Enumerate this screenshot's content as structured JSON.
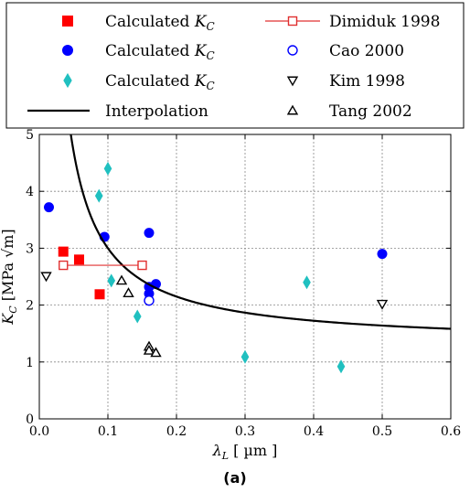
{
  "chart_data": {
    "type": "scatter",
    "caption": "(a)",
    "xlabel": "λL [ µm ]",
    "ylabel": "KC [MPa √m]",
    "xlim": [
      0,
      0.6
    ],
    "ylim": [
      0,
      5
    ],
    "xticks": [
      "0.0",
      "0.1",
      "0.2",
      "0.3",
      "0.4",
      "0.5",
      "0.6"
    ],
    "yticks": [
      "0",
      "1",
      "2",
      "3",
      "4",
      "5"
    ],
    "grid": true,
    "legend_placement": "top",
    "series": [
      {
        "name": "Calculated K_C",
        "kind": "scatter",
        "marker": "square",
        "filled": true,
        "color": "#ff0000",
        "points": [
          [
            0.035,
            2.94
          ],
          [
            0.058,
            2.8
          ],
          [
            0.088,
            2.19
          ]
        ]
      },
      {
        "name": "Calculated K_C",
        "kind": "scatter",
        "marker": "circle",
        "filled": true,
        "color": "#0000ff",
        "points": [
          [
            0.014,
            3.72
          ],
          [
            0.095,
            3.2
          ],
          [
            0.16,
            3.27
          ],
          [
            0.16,
            2.32
          ],
          [
            0.16,
            2.2
          ],
          [
            0.17,
            2.37
          ],
          [
            0.5,
            2.9
          ]
        ]
      },
      {
        "name": "Calculated K_C",
        "kind": "scatter",
        "marker": "diamond",
        "filled": true,
        "color": "#20c0c0",
        "points": [
          [
            0.1,
            4.4
          ],
          [
            0.087,
            3.92
          ],
          [
            0.105,
            2.43
          ],
          [
            0.143,
            1.8
          ],
          [
            0.3,
            1.09
          ],
          [
            0.39,
            2.4
          ],
          [
            0.44,
            0.92
          ]
        ]
      },
      {
        "name": "Interpolation",
        "kind": "curve",
        "color": "#000000",
        "formula": "K = 1.3 + 0.17 / x",
        "x_range": [
          0.038,
          0.6
        ]
      },
      {
        "name": "Dimiduk 1998",
        "kind": "errorbar",
        "marker": "square",
        "filled": false,
        "color": "#e03030",
        "points": [
          [
            0.035,
            2.7
          ],
          [
            0.15,
            2.7
          ]
        ]
      },
      {
        "name": "Cao 2000",
        "kind": "scatter",
        "marker": "circle",
        "filled": false,
        "color": "#0000ff",
        "points": [
          [
            0.16,
            2.08
          ]
        ]
      },
      {
        "name": "Kim 1998",
        "kind": "scatter",
        "marker": "triangle-down",
        "filled": false,
        "color": "#000000",
        "points": [
          [
            0.01,
            2.51
          ],
          [
            0.5,
            2.02
          ]
        ]
      },
      {
        "name": "Tang 2002",
        "kind": "scatter",
        "marker": "triangle-up",
        "filled": false,
        "color": "#000000",
        "points": [
          [
            0.12,
            2.43
          ],
          [
            0.13,
            2.21
          ],
          [
            0.16,
            1.27
          ],
          [
            0.16,
            1.2
          ],
          [
            0.17,
            1.16
          ]
        ]
      }
    ],
    "legend": {
      "left": [
        {
          "label": "Calculated K_C",
          "marker": "square",
          "filled": true,
          "color": "#ff0000"
        },
        {
          "label": "Calculated K_C",
          "marker": "circle",
          "filled": true,
          "color": "#0000ff"
        },
        {
          "label": "Calculated K_C",
          "marker": "diamond",
          "filled": true,
          "color": "#20c0c0"
        },
        {
          "label": "Interpolation",
          "marker": "line",
          "filled": false,
          "color": "#000000"
        }
      ],
      "right": [
        {
          "label": "Dimiduk 1998",
          "marker": "square-line",
          "filled": false,
          "color": "#e03030"
        },
        {
          "label": "Cao 2000",
          "marker": "circle",
          "filled": false,
          "color": "#0000ff"
        },
        {
          "label": "Kim 1998",
          "marker": "triangle-down",
          "filled": false,
          "color": "#000000"
        },
        {
          "label": "Tang 2002",
          "marker": "triangle-up",
          "filled": false,
          "color": "#000000"
        }
      ]
    }
  }
}
